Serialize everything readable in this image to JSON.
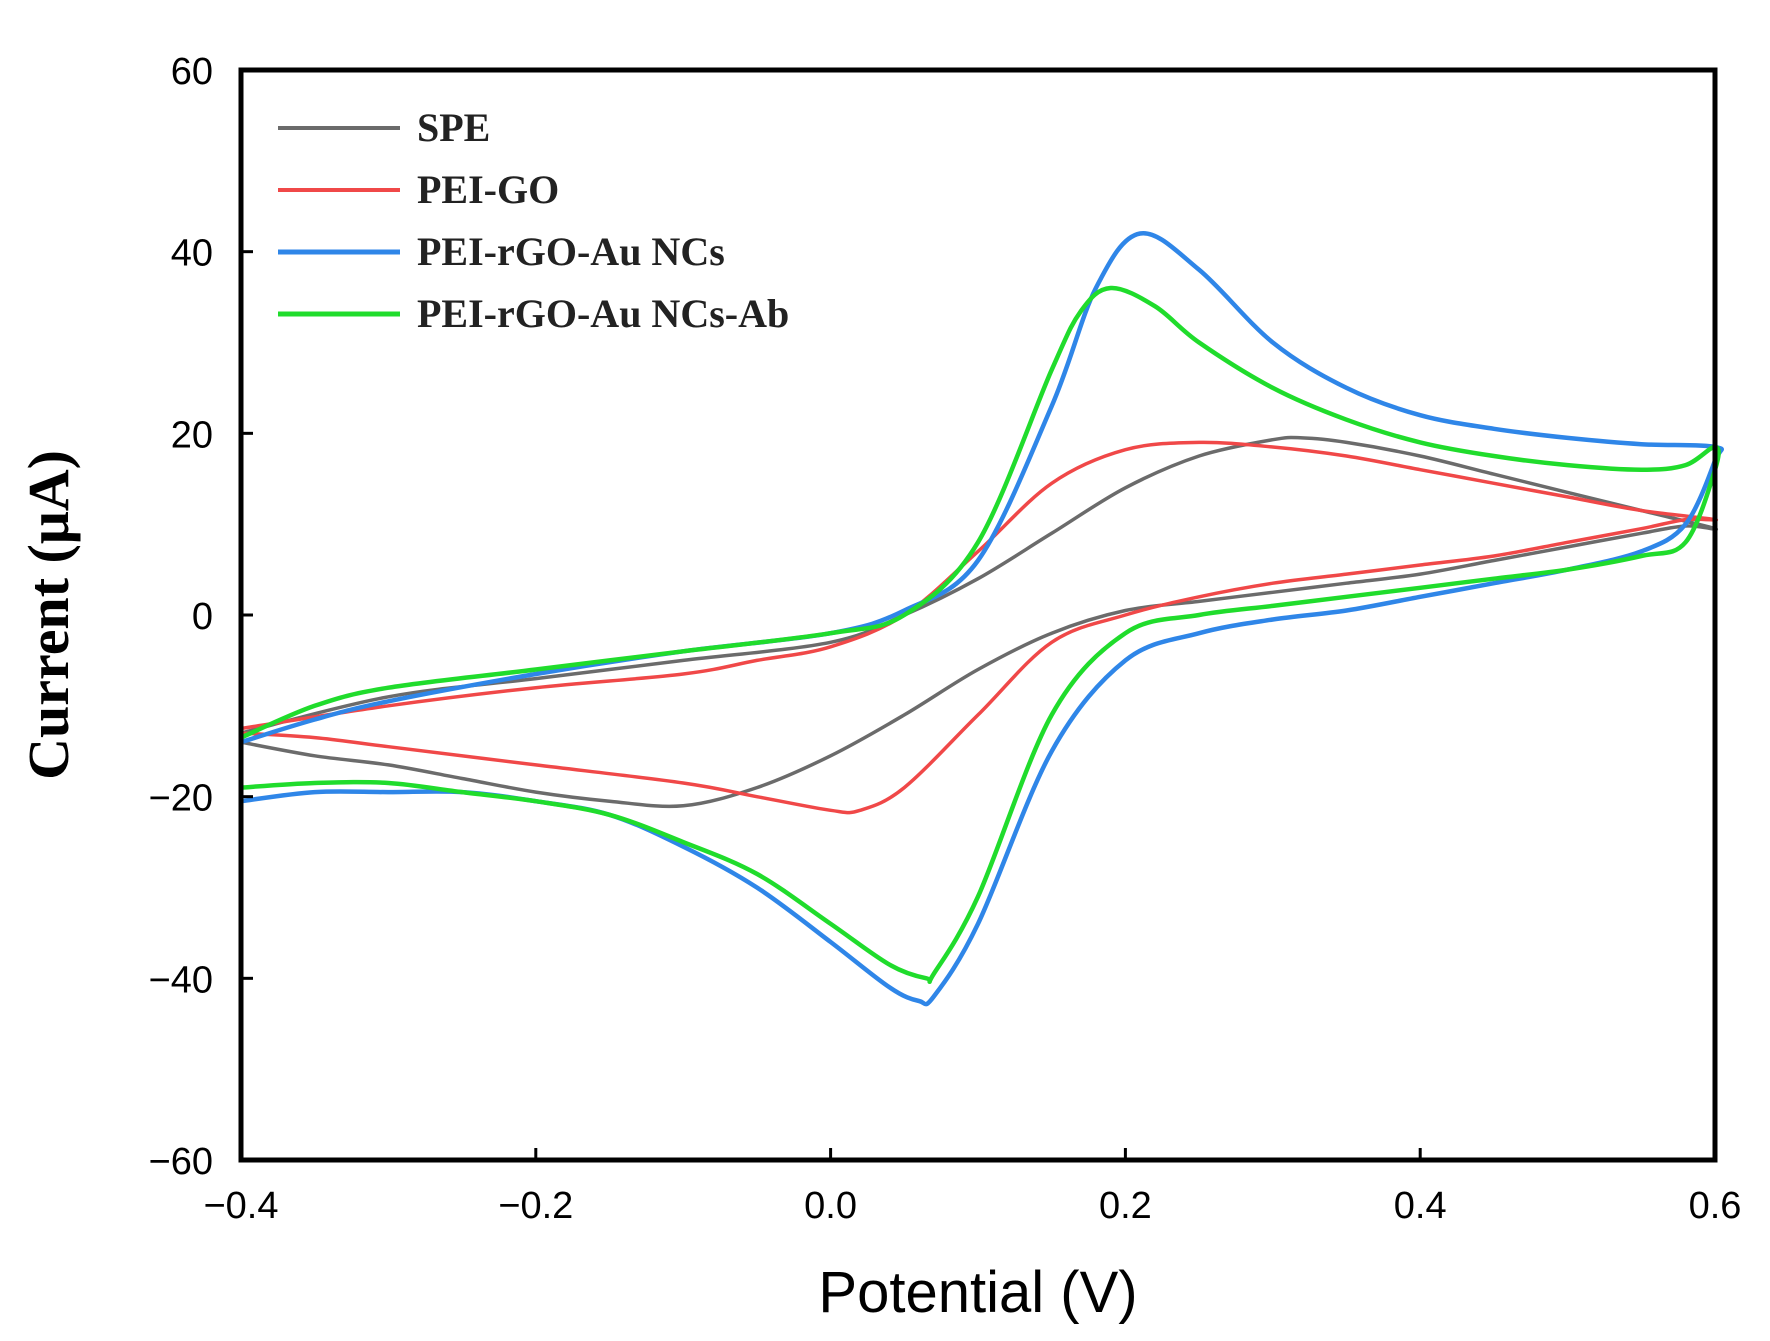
{
  "chart_data": {
    "type": "line",
    "title": "",
    "xlabel": "Potential (V)",
    "ylabel": "Current (μA)",
    "xlim": [
      -0.4,
      0.6
    ],
    "ylim": [
      -60,
      60
    ],
    "x_ticks": [
      -0.4,
      -0.2,
      0.0,
      0.2,
      0.4,
      0.6
    ],
    "x_tick_labels": [
      "−0.4",
      "−0.2",
      "0.0",
      "0.2",
      "0.4",
      "0.6"
    ],
    "y_ticks": [
      60,
      40,
      20,
      0,
      -20,
      -40,
      -60
    ],
    "y_tick_labels": [
      "60",
      "40",
      "20",
      "0",
      "−20",
      "−40",
      "−60"
    ],
    "grid": false,
    "legend_position": "top-left",
    "series": [
      {
        "name": "SPE",
        "color": "#6b6b6b",
        "x": [
          -0.4,
          -0.3,
          -0.2,
          -0.1,
          0.0,
          0.05,
          0.1,
          0.15,
          0.2,
          0.25,
          0.3,
          0.32,
          0.35,
          0.4,
          0.45,
          0.5,
          0.55,
          0.6,
          0.58,
          0.55,
          0.5,
          0.45,
          0.4,
          0.35,
          0.3,
          0.25,
          0.2,
          0.15,
          0.1,
          0.05,
          0.0,
          -0.05,
          -0.1,
          -0.15,
          -0.2,
          -0.25,
          -0.3,
          -0.35,
          -0.4
        ],
        "y": [
          -13,
          -9,
          -7,
          -5,
          -3,
          0,
          4,
          9,
          14,
          17.5,
          19.3,
          19.5,
          19,
          17.5,
          15.5,
          13.5,
          11.5,
          9.5,
          9.8,
          9,
          7.5,
          6,
          4.5,
          3.5,
          2.5,
          1.5,
          0.5,
          -2,
          -6,
          -11,
          -15.5,
          -19,
          -21,
          -20.5,
          -19.5,
          -18,
          -16.5,
          -15.5,
          -14
        ]
      },
      {
        "name": "PEI-GO",
        "color": "#f04848",
        "x": [
          -0.4,
          -0.3,
          -0.2,
          -0.1,
          -0.05,
          0.0,
          0.05,
          0.1,
          0.15,
          0.2,
          0.25,
          0.3,
          0.35,
          0.4,
          0.45,
          0.5,
          0.55,
          0.6,
          0.58,
          0.55,
          0.5,
          0.45,
          0.4,
          0.35,
          0.3,
          0.25,
          0.2,
          0.15,
          0.1,
          0.05,
          0.02,
          0.0,
          -0.05,
          -0.1,
          -0.2,
          -0.3,
          -0.35,
          -0.4
        ],
        "y": [
          -12.5,
          -10,
          -8,
          -6.5,
          -5,
          -3.5,
          0,
          7,
          14.5,
          18.2,
          19,
          18.5,
          17.5,
          16,
          14.5,
          13,
          11.5,
          10.5,
          10.5,
          9.5,
          8,
          6.5,
          5.5,
          4.5,
          3.5,
          2,
          0,
          -3,
          -11,
          -19,
          -21.5,
          -21.5,
          -20,
          -18.5,
          -16.5,
          -14.5,
          -13.5,
          -13
        ]
      },
      {
        "name": "PEI-rGO-Au NCs",
        "color": "#2f86e8",
        "x": [
          -0.4,
          -0.35,
          -0.3,
          -0.2,
          -0.1,
          0.0,
          0.05,
          0.1,
          0.15,
          0.18,
          0.21,
          0.25,
          0.3,
          0.35,
          0.4,
          0.45,
          0.5,
          0.55,
          0.6,
          0.6,
          0.58,
          0.55,
          0.5,
          0.45,
          0.4,
          0.35,
          0.3,
          0.25,
          0.2,
          0.15,
          0.1,
          0.07,
          0.06,
          0.04,
          0.0,
          -0.05,
          -0.1,
          -0.15,
          -0.2,
          -0.25,
          -0.3,
          -0.35,
          -0.4
        ],
        "y": [
          -14,
          -11.5,
          -9.5,
          -6.5,
          -4,
          -2,
          0.5,
          6,
          23,
          36,
          42,
          38,
          30,
          25,
          22,
          20.5,
          19.5,
          18.8,
          18.5,
          17,
          10,
          7,
          5,
          3.5,
          2,
          0.5,
          -0.5,
          -2,
          -5,
          -15,
          -34,
          -42,
          -42.5,
          -41,
          -36,
          -30,
          -25.5,
          -22,
          -20.5,
          -19.5,
          -19.5,
          -19.5,
          -20.5
        ]
      },
      {
        "name": "PEI-rGO-Au NCs-Ab",
        "color": "#20dc2c",
        "x": [
          -0.4,
          -0.35,
          -0.3,
          -0.2,
          -0.1,
          0.0,
          0.05,
          0.1,
          0.15,
          0.17,
          0.19,
          0.22,
          0.25,
          0.3,
          0.35,
          0.4,
          0.45,
          0.5,
          0.55,
          0.58,
          0.6,
          0.6,
          0.58,
          0.55,
          0.5,
          0.45,
          0.4,
          0.35,
          0.3,
          0.25,
          0.2,
          0.15,
          0.1,
          0.07,
          0.065,
          0.04,
          0.0,
          -0.05,
          -0.1,
          -0.15,
          -0.2,
          -0.25,
          -0.3,
          -0.35,
          -0.4
        ],
        "y": [
          -13.5,
          -10,
          -8,
          -6,
          -4,
          -2,
          0,
          8,
          27,
          33.5,
          36,
          34,
          30,
          25,
          21.5,
          19,
          17.5,
          16.5,
          16,
          16.5,
          18.5,
          16,
          8,
          6.5,
          5,
          4,
          3,
          2,
          1,
          0,
          -2,
          -11,
          -31,
          -39.5,
          -40,
          -38.5,
          -34,
          -28.5,
          -25,
          -22,
          -20.5,
          -19.5,
          -18.5,
          -18.5,
          -19
        ]
      }
    ]
  }
}
